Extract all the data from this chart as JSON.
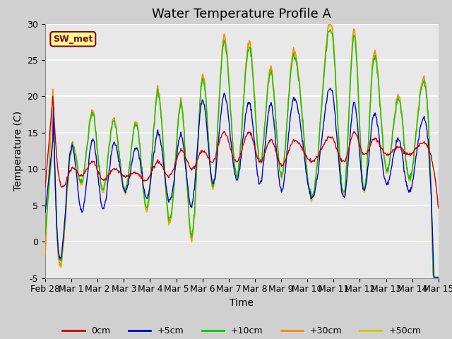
{
  "title": "Water Temperature Profile A",
  "xlabel": "Time",
  "ylabel": "Temperature (C)",
  "ylim": [
    -5,
    30
  ],
  "xlim": [
    0,
    15
  ],
  "xtick_labels": [
    "Feb 28",
    "Mar 1",
    "Mar 2",
    "Mar 3",
    "Mar 4",
    "Mar 5",
    "Mar 6",
    "Mar 7",
    "Mar 8",
    "Mar 9",
    "Mar 10",
    "Mar 11",
    "Mar 12",
    "Mar 13",
    "Mar 14",
    "Mar 15"
  ],
  "ytick_values": [
    -5,
    0,
    5,
    10,
    15,
    20,
    25,
    30
  ],
  "series_colors": [
    "#cc0000",
    "#0000cc",
    "#00cc00",
    "#ff8800",
    "#cccc00"
  ],
  "series_labels": [
    "0cm",
    "+5cm",
    "+10cm",
    "+30cm",
    "+50cm"
  ],
  "annotation_text": "SW_met",
  "title_fontsize": 13,
  "label_fontsize": 10,
  "tick_fontsize": 9,
  "fig_bg": "#d0d0d0",
  "plot_bg": "#e8e8e8",
  "grid_color": "#ffffff"
}
